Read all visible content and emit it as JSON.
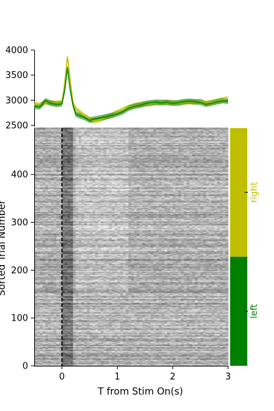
{
  "colors": {
    "right": "#bfbf00",
    "left": "#008000",
    "marker_line": "#000000"
  },
  "chart_data": [
    {
      "type": "line",
      "panel": "top-psth",
      "title": "",
      "xlabel": "",
      "ylabel": "",
      "xlim": [
        -0.5,
        3.0
      ],
      "ylim": [
        2500,
        4000
      ],
      "yticks": [
        "2500",
        "3000",
        "3500",
        "4000"
      ],
      "x": [
        -0.5,
        -0.4,
        -0.3,
        -0.2,
        -0.1,
        0.0,
        0.05,
        0.1,
        0.15,
        0.2,
        0.25,
        0.3,
        0.4,
        0.5,
        0.6,
        0.7,
        0.8,
        0.9,
        1.0,
        1.1,
        1.2,
        1.3,
        1.4,
        1.5,
        1.6,
        1.7,
        1.8,
        1.9,
        2.0,
        2.1,
        2.2,
        2.3,
        2.4,
        2.5,
        2.6,
        2.7,
        2.8,
        2.9,
        3.0
      ],
      "series": [
        {
          "name": "right",
          "color": "#bfbf00",
          "values": [
            2920,
            2900,
            2960,
            2950,
            2940,
            2950,
            3350,
            3870,
            3400,
            2950,
            2830,
            2780,
            2700,
            2620,
            2590,
            2620,
            2670,
            2700,
            2760,
            2810,
            2860,
            2890,
            2910,
            2930,
            2930,
            2950,
            2960,
            2950,
            2950,
            2940,
            2960,
            2970,
            2960,
            2980,
            2940,
            2960,
            2980,
            3010,
            3030
          ]
        },
        {
          "name": "left",
          "color": "#008000",
          "values": [
            2880,
            2870,
            2990,
            2940,
            2920,
            2930,
            3200,
            3650,
            3200,
            2900,
            2720,
            2700,
            2660,
            2600,
            2630,
            2650,
            2670,
            2700,
            2730,
            2770,
            2840,
            2880,
            2900,
            2930,
            2950,
            2960,
            2950,
            2960,
            2940,
            2950,
            2970,
            2980,
            2970,
            2960,
            2920,
            2940,
            2970,
            2990,
            2980
          ]
        }
      ]
    },
    {
      "type": "heatmap",
      "panel": "raster",
      "title": "",
      "xlabel": "T from Stim On(s)",
      "ylabel": "Sorted Trial Number",
      "xlim": [
        -0.5,
        3.0
      ],
      "ylim": [
        0,
        497
      ],
      "xticks": [
        "0",
        "1",
        "2",
        "3"
      ],
      "yticks": [
        "0",
        "100",
        "200",
        "300",
        "400"
      ],
      "stim_onset": 0,
      "groups": [
        {
          "label": "left",
          "color": "#008000",
          "trial_range": [
            0,
            228
          ]
        },
        {
          "label": "right",
          "color": "#bfbf00",
          "trial_range": [
            228,
            497
          ]
        }
      ]
    }
  ]
}
